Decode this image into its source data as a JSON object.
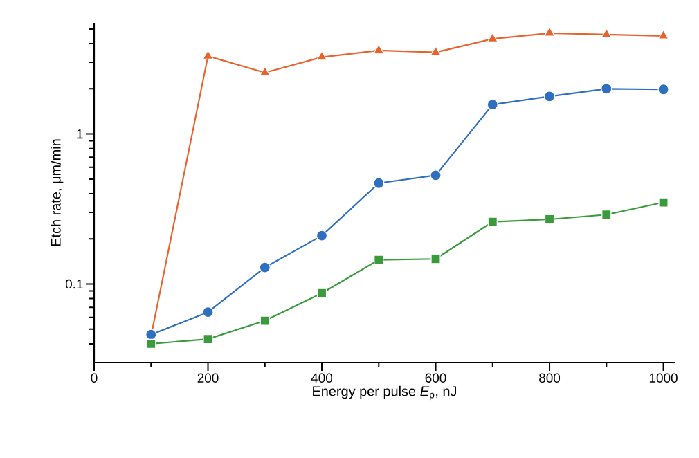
{
  "chart_data": {
    "type": "line",
    "xlabel": "Energy per pulse *E*$_{p}$, nJ",
    "ylabel": "Etch rate, μm/min",
    "log": "y",
    "x": [
      100,
      200,
      300,
      400,
      500,
      600,
      700,
      800,
      900,
      1000
    ],
    "xlim": [
      0,
      1020
    ],
    "ylim": [
      0.03,
      5.5
    ],
    "xticks": [
      0,
      {
        "value": 100,
        "label": null
      },
      200,
      {
        "value": 300,
        "label": null
      },
      400,
      {
        "value": 500,
        "label": null
      },
      600,
      {
        "value": 700,
        "label": null
      },
      800,
      {
        "value": 900,
        "label": null
      },
      1000
    ],
    "yticks": [
      {
        "value": 0.04,
        "label": null
      },
      {
        "value": 0.05,
        "label": null
      },
      {
        "value": 0.06,
        "label": null
      },
      {
        "value": 0.07,
        "label": null
      },
      {
        "value": 0.08,
        "label": null
      },
      {
        "value": 0.09,
        "label": null
      },
      0.1,
      {
        "value": 0.2,
        "label": null
      },
      {
        "value": 0.3,
        "label": null
      },
      {
        "value": 0.4,
        "label": null
      },
      {
        "value": 0.5,
        "label": null
      },
      {
        "value": 0.6,
        "label": null
      },
      {
        "value": 0.7,
        "label": null
      },
      {
        "value": 0.8,
        "label": null
      },
      {
        "value": 0.9,
        "label": null
      },
      1,
      {
        "value": 2,
        "label": null
      },
      {
        "value": 3,
        "label": null
      },
      {
        "value": 4,
        "label": null
      },
      {
        "value": 5,
        "label": null
      }
    ],
    "line_style": "solid",
    "series": [
      {
        "color": "#e8622c",
        "marker": "triangle",
        "values": [
          0.045,
          3.3,
          2.56,
          3.25,
          3.6,
          3.5,
          4.3,
          4.7,
          4.6,
          4.5
        ]
      },
      {
        "color": "#2e6fc0",
        "marker": "circle",
        "values": [
          0.046,
          0.065,
          0.129,
          0.21,
          0.47,
          0.53,
          1.57,
          1.78,
          2.0,
          1.98
        ]
      },
      {
        "color": "#3a9a3c",
        "marker": "square",
        "values": [
          0.04,
          0.043,
          0.057,
          0.087,
          0.145,
          0.147,
          0.26,
          0.27,
          0.29,
          0.35
        ]
      }
    ]
  }
}
